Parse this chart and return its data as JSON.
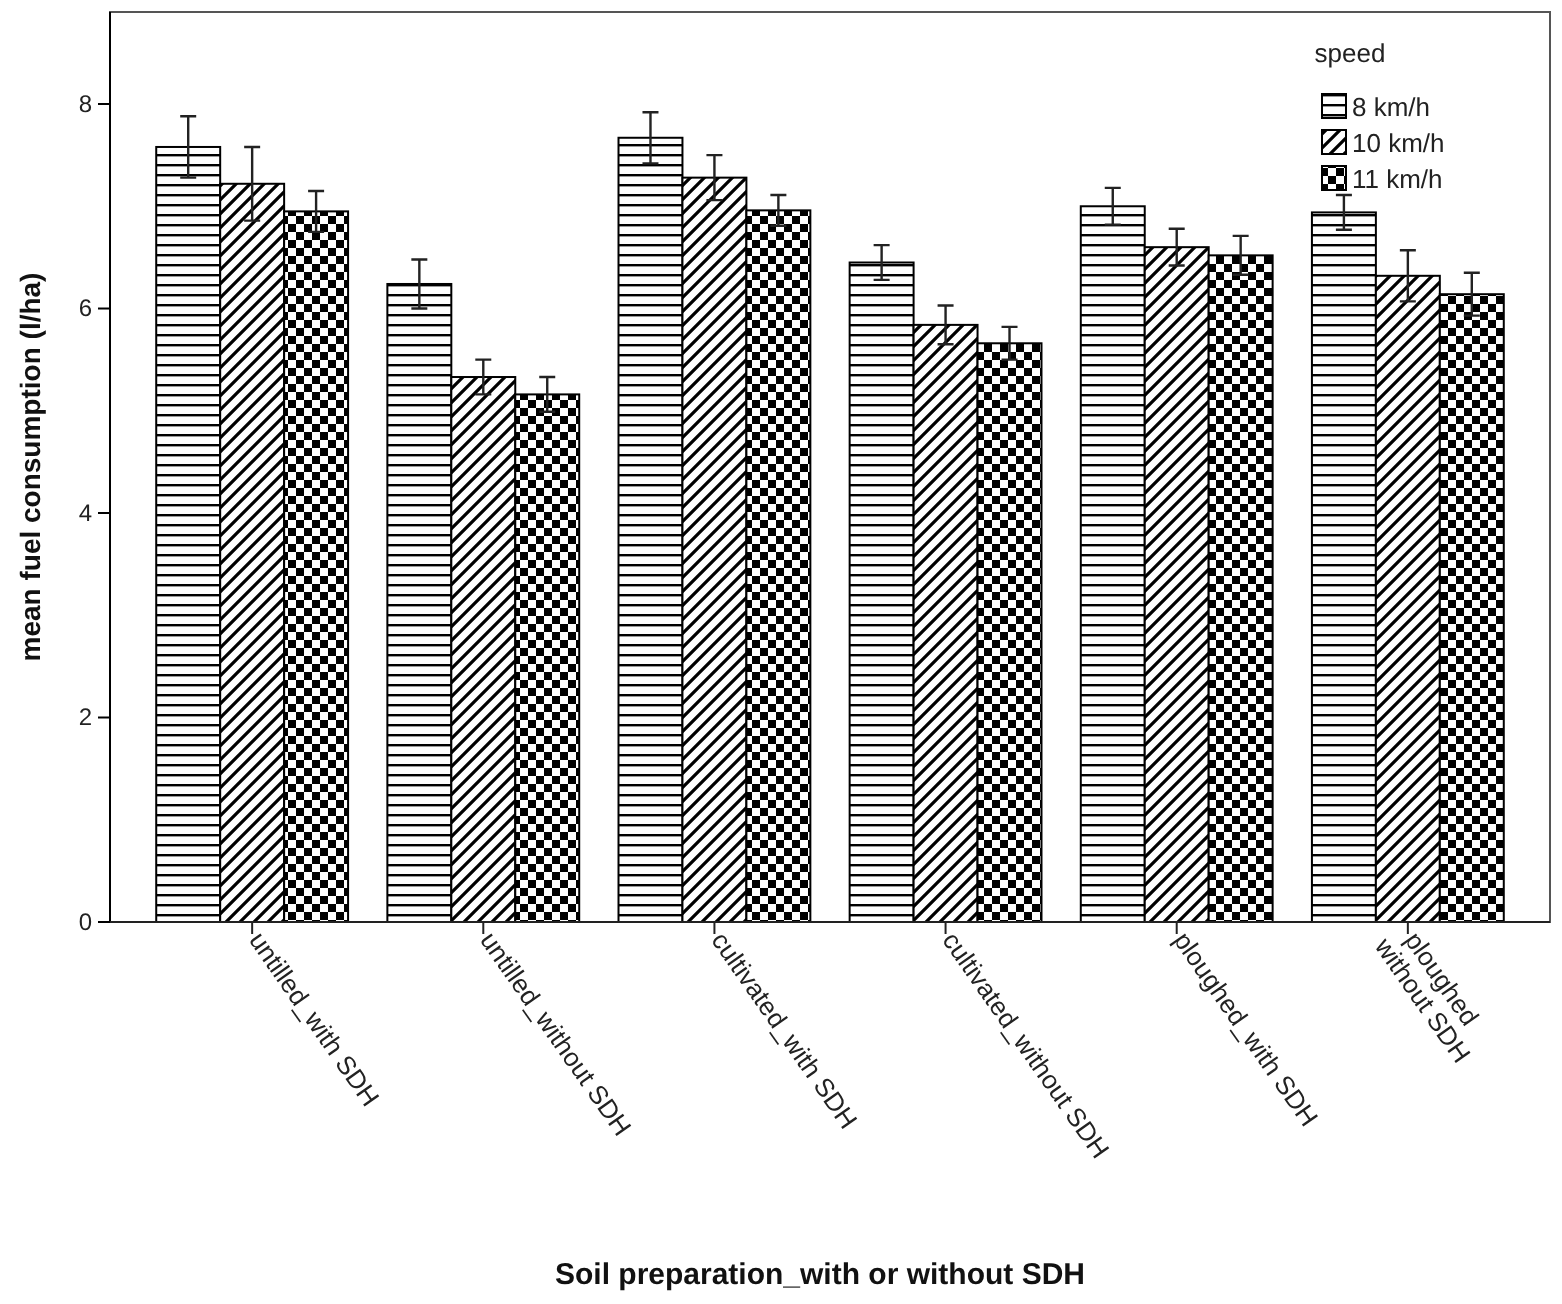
{
  "chart_data": {
    "type": "bar",
    "xlabel": "Soil preparation_with or without SDH",
    "ylabel": "mean fuel consumption (l/ha)",
    "legend_title": "speed",
    "categories": [
      "untilled_with SDH",
      "untilled_without SDH",
      "cultivated_with SDH",
      "cultivated_without SDH",
      "ploughed_with SDH",
      "ploughed without SDH"
    ],
    "series": [
      {
        "name": "8 km/h",
        "color": "#000000",
        "values": [
          7.58,
          6.24,
          7.67,
          6.45,
          7.0,
          6.94
        ],
        "errors": [
          0.3,
          0.24,
          0.25,
          0.17,
          0.18,
          0.17
        ]
      },
      {
        "name": "10 km/h",
        "color": "#000000",
        "values": [
          7.22,
          5.33,
          7.28,
          5.84,
          6.6,
          6.32
        ],
        "errors": [
          0.36,
          0.17,
          0.22,
          0.19,
          0.18,
          0.25
        ]
      },
      {
        "name": "11 km/h",
        "color": "#000000",
        "values": [
          6.95,
          5.16,
          6.96,
          5.66,
          6.52,
          6.14
        ],
        "errors": [
          0.2,
          0.17,
          0.15,
          0.16,
          0.19,
          0.21
        ]
      }
    ],
    "ylim": [
      0,
      8.9
    ],
    "yticks": [
      0,
      2,
      4,
      6,
      8
    ],
    "grid": false,
    "legend": "top right"
  }
}
